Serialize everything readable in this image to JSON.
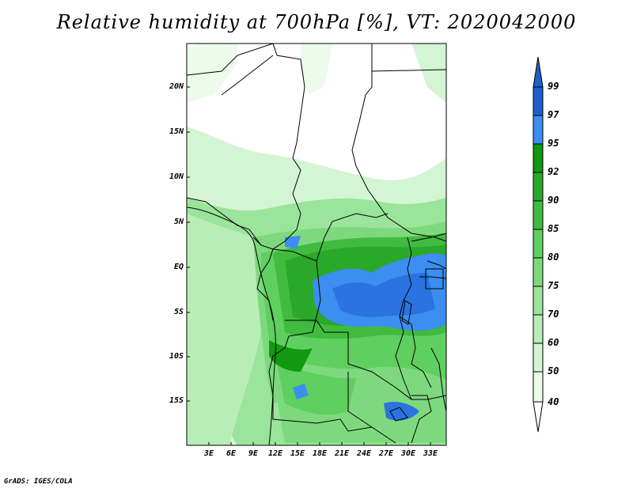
{
  "title": "Relative humidity at 700hPa [%], VT: 2020042000",
  "lat_labels": [
    "20N",
    "15N",
    "10N",
    "5N",
    "EQ",
    "5S",
    "10S",
    "15S"
  ],
  "lon_labels": [
    "3E",
    "6E",
    "9E",
    "12E",
    "15E",
    "18E",
    "21E",
    "24E",
    "27E",
    "30E",
    "33E"
  ],
  "colorbar": {
    "levels": [
      "99",
      "97",
      "95",
      "92",
      "90",
      "85",
      "80",
      "75",
      "70",
      "60",
      "50",
      "40"
    ],
    "colors": [
      "#1e5fcc",
      "#2a73e0",
      "#3c8ef0",
      "#119911",
      "#2aa82a",
      "#40bb40",
      "#5fcf5f",
      "#7ed97e",
      "#9be49b",
      "#b8edb8",
      "#d4f5d4",
      "#ecfbec"
    ],
    "extend": "both"
  },
  "credit": "GrADS: IGES/COLA"
}
